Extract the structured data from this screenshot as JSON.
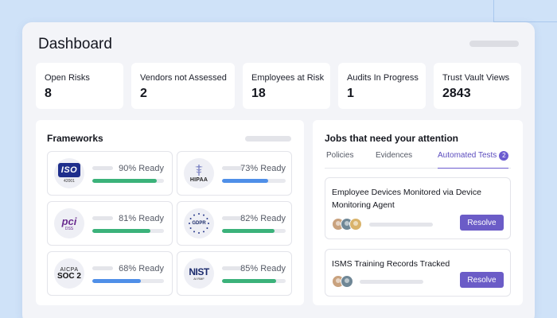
{
  "dashboard": {
    "title": "Dashboard"
  },
  "stats": [
    {
      "label": "Open Risks",
      "value": "8"
    },
    {
      "label": "Vendors not Assessed",
      "value": "2"
    },
    {
      "label": "Employees at Risk",
      "value": "18"
    },
    {
      "label": "Audits In Progress",
      "value": "1"
    },
    {
      "label": "Trust Vault Views",
      "value": "2843"
    }
  ],
  "frameworks": {
    "title": "Frameworks",
    "items": [
      {
        "logo": "iso-27001-logo",
        "logo_text": "ISO",
        "logo_sub": "42001",
        "status": "90% Ready",
        "progress": 0.9,
        "color": "#3bb27a"
      },
      {
        "logo": "hipaa-logo",
        "logo_text": "HIPAA",
        "status": "73% Ready",
        "progress": 0.73,
        "color": "#4f8fe8"
      },
      {
        "logo": "pci-dss-logo",
        "logo_text": "pci",
        "logo_sub": "DSS",
        "status": "81% Ready",
        "progress": 0.81,
        "color": "#3bb27a"
      },
      {
        "logo": "gdpr-logo",
        "logo_text": "GDPR",
        "status": "82% Ready",
        "progress": 0.82,
        "color": "#3bb27a"
      },
      {
        "logo": "aicpa-soc2-logo",
        "logo_text": "AICPA",
        "logo_sub": "SOC 2",
        "status": "68% Ready",
        "progress": 0.68,
        "color": "#4f8fe8"
      },
      {
        "logo": "nist-ai-rmf-logo",
        "logo_text": "NIST",
        "logo_sub": "AI RMF",
        "status": "85% Ready",
        "progress": 0.85,
        "color": "#3bb27a"
      }
    ]
  },
  "jobs": {
    "title": "Jobs that need your attention",
    "tabs": [
      {
        "label": "Policies"
      },
      {
        "label": "Evidences"
      },
      {
        "label": "Automated Tests",
        "badge": "2",
        "active": true
      }
    ],
    "items": [
      {
        "text": "Employee Devices Monitored via Device Monitoring Agent",
        "action": "Resolve",
        "avatars": [
          "#c9a27e",
          "#6f8796",
          "#d9b36a"
        ]
      },
      {
        "text": "ISMS Training Records Tracked",
        "action": "Resolve",
        "avatars": [
          "#c9a27e",
          "#6f8796"
        ]
      }
    ]
  },
  "colors": {
    "accent": "#6b5cc7",
    "ready_green": "#3bb27a",
    "ready_blue": "#4f8fe8"
  }
}
